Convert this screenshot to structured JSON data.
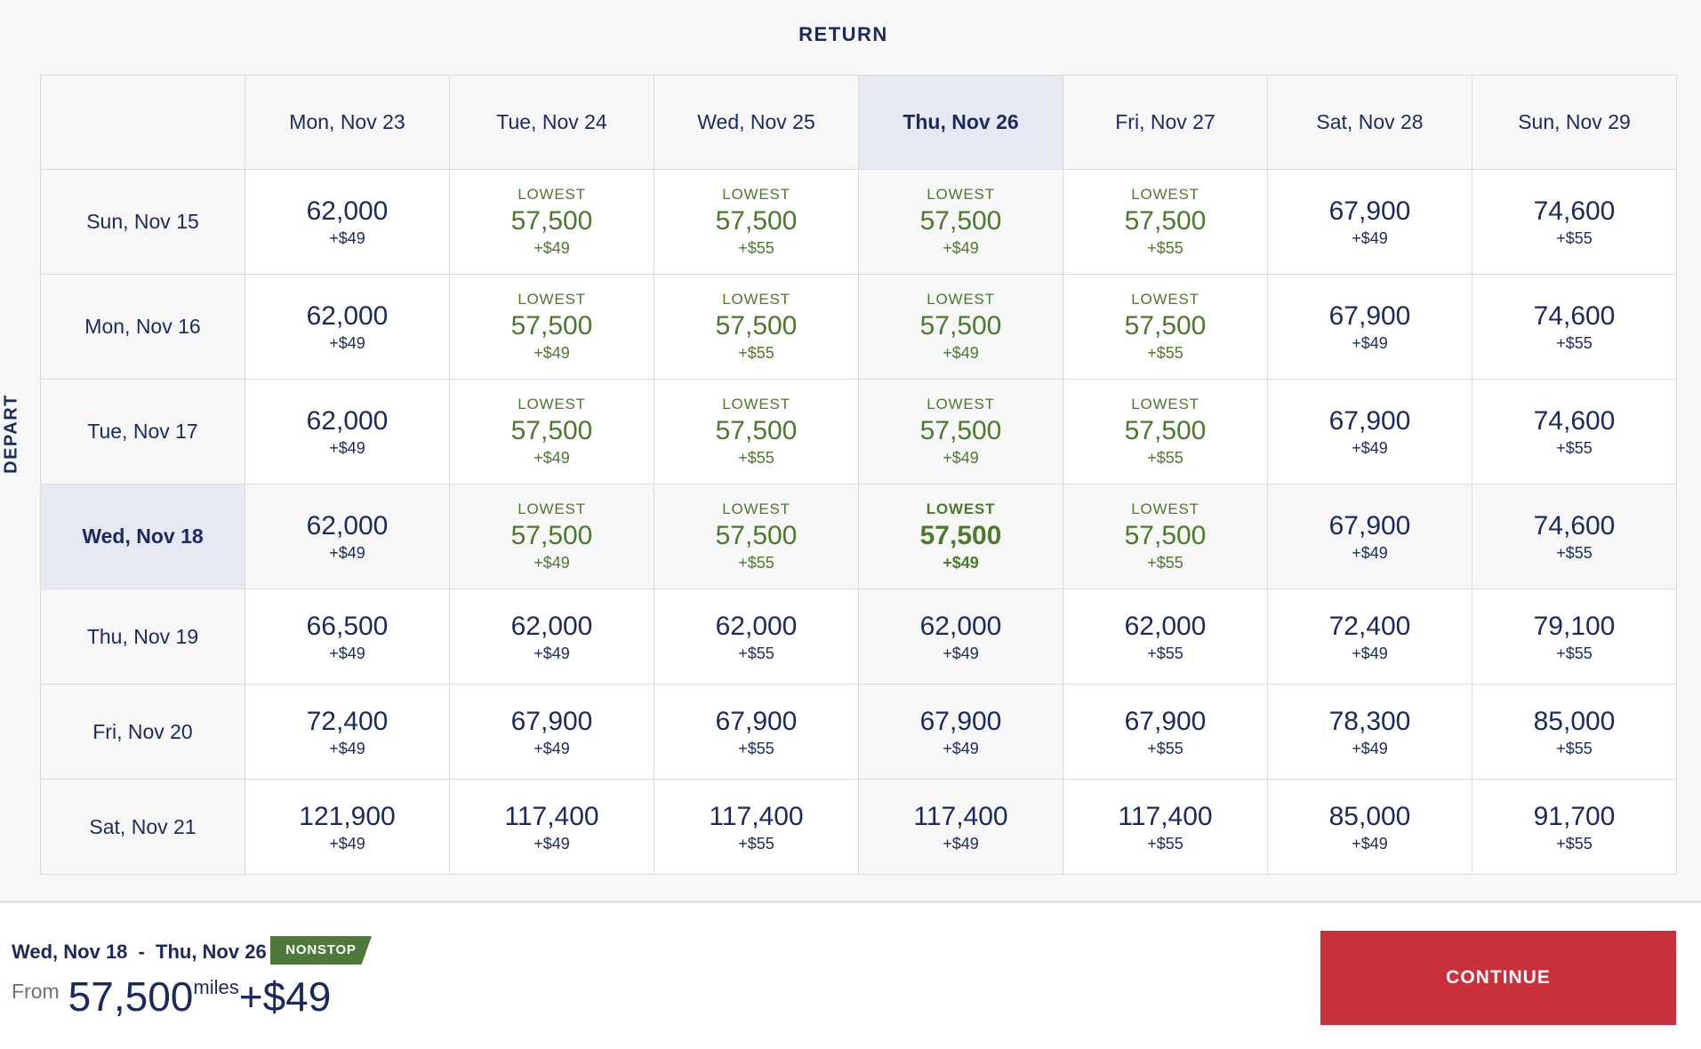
{
  "return_title": "RETURN",
  "depart_label": "DEPART",
  "lowest_label": "LOWEST",
  "return_dates": [
    "Mon, Nov 23",
    "Tue, Nov 24",
    "Wed, Nov 25",
    "Thu, Nov 26",
    "Fri, Nov 27",
    "Sat, Nov 28",
    "Sun, Nov 29"
  ],
  "selected_return_index": 3,
  "selected_depart_index": 3,
  "rows": [
    {
      "depart": "Sun, Nov 15",
      "cells": [
        {
          "miles": "62,000",
          "fee": "+$49",
          "lowest": false
        },
        {
          "miles": "57,500",
          "fee": "+$49",
          "lowest": true
        },
        {
          "miles": "57,500",
          "fee": "+$55",
          "lowest": true
        },
        {
          "miles": "57,500",
          "fee": "+$49",
          "lowest": true
        },
        {
          "miles": "57,500",
          "fee": "+$55",
          "lowest": true
        },
        {
          "miles": "67,900",
          "fee": "+$49",
          "lowest": false
        },
        {
          "miles": "74,600",
          "fee": "+$55",
          "lowest": false
        }
      ]
    },
    {
      "depart": "Mon, Nov 16",
      "cells": [
        {
          "miles": "62,000",
          "fee": "+$49",
          "lowest": false
        },
        {
          "miles": "57,500",
          "fee": "+$49",
          "lowest": true
        },
        {
          "miles": "57,500",
          "fee": "+$55",
          "lowest": true
        },
        {
          "miles": "57,500",
          "fee": "+$49",
          "lowest": true
        },
        {
          "miles": "57,500",
          "fee": "+$55",
          "lowest": true
        },
        {
          "miles": "67,900",
          "fee": "+$49",
          "lowest": false
        },
        {
          "miles": "74,600",
          "fee": "+$55",
          "lowest": false
        }
      ]
    },
    {
      "depart": "Tue, Nov 17",
      "cells": [
        {
          "miles": "62,000",
          "fee": "+$49",
          "lowest": false
        },
        {
          "miles": "57,500",
          "fee": "+$49",
          "lowest": true
        },
        {
          "miles": "57,500",
          "fee": "+$55",
          "lowest": true
        },
        {
          "miles": "57,500",
          "fee": "+$49",
          "lowest": true
        },
        {
          "miles": "57,500",
          "fee": "+$55",
          "lowest": true
        },
        {
          "miles": "67,900",
          "fee": "+$49",
          "lowest": false
        },
        {
          "miles": "74,600",
          "fee": "+$55",
          "lowest": false
        }
      ]
    },
    {
      "depart": "Wed, Nov 18",
      "cells": [
        {
          "miles": "62,000",
          "fee": "+$49",
          "lowest": false
        },
        {
          "miles": "57,500",
          "fee": "+$49",
          "lowest": true
        },
        {
          "miles": "57,500",
          "fee": "+$55",
          "lowest": true
        },
        {
          "miles": "57,500",
          "fee": "+$49",
          "lowest": true
        },
        {
          "miles": "57,500",
          "fee": "+$55",
          "lowest": true
        },
        {
          "miles": "67,900",
          "fee": "+$49",
          "lowest": false
        },
        {
          "miles": "74,600",
          "fee": "+$55",
          "lowest": false
        }
      ]
    },
    {
      "depart": "Thu, Nov 19",
      "cells": [
        {
          "miles": "66,500",
          "fee": "+$49",
          "lowest": false
        },
        {
          "miles": "62,000",
          "fee": "+$49",
          "lowest": false
        },
        {
          "miles": "62,000",
          "fee": "+$55",
          "lowest": false
        },
        {
          "miles": "62,000",
          "fee": "+$49",
          "lowest": false
        },
        {
          "miles": "62,000",
          "fee": "+$55",
          "lowest": false
        },
        {
          "miles": "72,400",
          "fee": "+$49",
          "lowest": false
        },
        {
          "miles": "79,100",
          "fee": "+$55",
          "lowest": false
        }
      ]
    },
    {
      "depart": "Fri, Nov 20",
      "cells": [
        {
          "miles": "72,400",
          "fee": "+$49",
          "lowest": false
        },
        {
          "miles": "67,900",
          "fee": "+$49",
          "lowest": false
        },
        {
          "miles": "67,900",
          "fee": "+$55",
          "lowest": false
        },
        {
          "miles": "67,900",
          "fee": "+$49",
          "lowest": false
        },
        {
          "miles": "67,900",
          "fee": "+$55",
          "lowest": false
        },
        {
          "miles": "78,300",
          "fee": "+$49",
          "lowest": false
        },
        {
          "miles": "85,000",
          "fee": "+$55",
          "lowest": false
        }
      ]
    },
    {
      "depart": "Sat, Nov 21",
      "cells": [
        {
          "miles": "121,900",
          "fee": "+$49",
          "lowest": false
        },
        {
          "miles": "117,400",
          "fee": "+$49",
          "lowest": false
        },
        {
          "miles": "117,400",
          "fee": "+$55",
          "lowest": false
        },
        {
          "miles": "117,400",
          "fee": "+$49",
          "lowest": false
        },
        {
          "miles": "117,400",
          "fee": "+$55",
          "lowest": false
        },
        {
          "miles": "85,000",
          "fee": "+$49",
          "lowest": false
        },
        {
          "miles": "91,700",
          "fee": "+$55",
          "lowest": false
        }
      ]
    }
  ],
  "summary": {
    "depart_date": "Wed, Nov 18",
    "separator": "-",
    "return_date": "Thu, Nov 26",
    "badge": "NONSTOP",
    "from_label": "From",
    "miles": "57,500",
    "miles_unit": "miles",
    "fee": "+$49"
  },
  "continue_label": "CONTINUE",
  "colors": {
    "navy": "#1b2a5e",
    "lowest_green": "#4a7a2a",
    "selected_bg": "#e6e9f1",
    "badge_green": "#4d7a3a",
    "continue_red": "#c8303c"
  }
}
